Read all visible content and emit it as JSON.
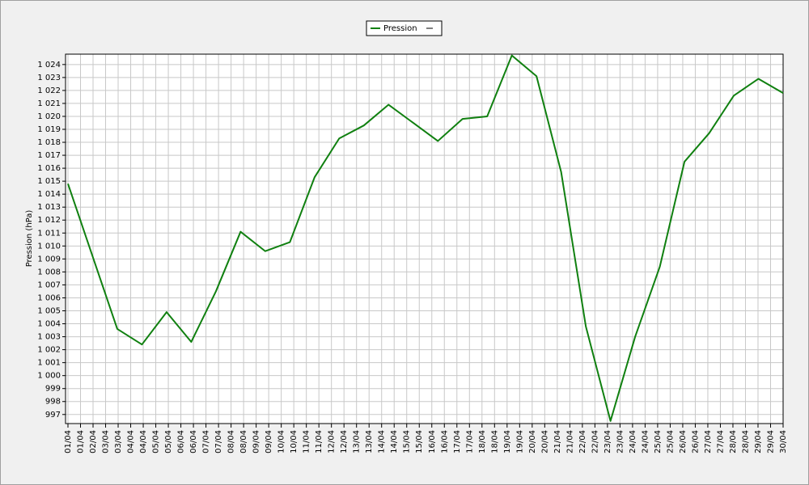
{
  "chart_data": {
    "type": "line",
    "y_label": "Pression (hPa)",
    "x": [
      "01/04",
      "02/04",
      "03/04",
      "04/04",
      "05/04",
      "06/04",
      "07/04",
      "08/04",
      "09/04",
      "10/04",
      "11/04",
      "12/04",
      "13/04",
      "14/04",
      "15/04",
      "16/04",
      "17/04",
      "18/04",
      "19/04",
      "20/04",
      "21/04",
      "22/04",
      "23/04",
      "24/04",
      "25/04",
      "26/04",
      "27/04",
      "28/04",
      "29/04",
      "30/04"
    ],
    "xticks": [
      "01/04",
      "01/04",
      "02/04",
      "03/04",
      "03/04",
      "04/04",
      "04/04",
      "05/04",
      "05/04",
      "06/04",
      "06/04",
      "07/04",
      "07/04",
      "08/04",
      "08/04",
      "09/04",
      "09/04",
      "10/04",
      "10/04",
      "11/04",
      "11/04",
      "12/04",
      "12/04",
      "13/04",
      "13/04",
      "14/04",
      "14/04",
      "15/04",
      "15/04",
      "16/04",
      "16/04",
      "17/04",
      "17/04",
      "18/04",
      "18/04",
      "19/04",
      "19/04",
      "20/04",
      "20/04",
      "21/04",
      "21/04",
      "22/04",
      "22/04",
      "23/04",
      "23/04",
      "24/04",
      "24/04",
      "25/04",
      "25/04",
      "26/04",
      "26/04",
      "27/04",
      "27/04",
      "28/04",
      "28/04",
      "29/04",
      "29/04",
      "30/04"
    ],
    "series": [
      {
        "name": "Pression",
        "color": "#108010",
        "values": [
          1014.8,
          1009.2,
          1003.6,
          1002.4,
          1004.9,
          1002.6,
          1006.5,
          1011.1,
          1009.6,
          1010.3,
          1015.3,
          1018.3,
          1019.3,
          1020.9,
          1019.5,
          1018.1,
          1019.8,
          1020.0,
          1024.7,
          1023.1,
          1015.7,
          1003.8,
          996.5,
          1003.0,
          1008.4,
          1016.5,
          1018.7,
          1021.6,
          1022.9,
          1021.8
        ]
      }
    ],
    "ylim": [
      996.3,
      1024.8
    ],
    "yticks": [
      997,
      998,
      999,
      {
        "value": 1000,
        "label": "1 000"
      },
      {
        "value": 1001,
        "label": "1 001"
      },
      {
        "value": 1002,
        "label": "1 002"
      },
      {
        "value": 1003,
        "label": "1 003"
      },
      {
        "value": 1004,
        "label": "1 004"
      },
      {
        "value": 1005,
        "label": "1 005"
      },
      {
        "value": 1006,
        "label": "1 006"
      },
      {
        "value": 1007,
        "label": "1 007"
      },
      {
        "value": 1008,
        "label": "1 008"
      },
      {
        "value": 1009,
        "label": "1 009"
      },
      {
        "value": 1010,
        "label": "1 010"
      },
      {
        "value": 1011,
        "label": "1 011"
      },
      {
        "value": 1012,
        "label": "1 012"
      },
      {
        "value": 1013,
        "label": "1 013"
      },
      {
        "value": 1014,
        "label": "1 014"
      },
      {
        "value": 1015,
        "label": "1 015"
      },
      {
        "value": 1016,
        "label": "1 016"
      },
      {
        "value": 1017,
        "label": "1 017"
      },
      {
        "value": 1018,
        "label": "1 018"
      },
      {
        "value": 1019,
        "label": "1 019"
      },
      {
        "value": 1020,
        "label": "1 020"
      },
      {
        "value": 1021,
        "label": "1 021"
      },
      {
        "value": 1022,
        "label": "1 022"
      },
      {
        "value": 1023,
        "label": "1 023"
      },
      {
        "value": 1024,
        "label": "1 024"
      }
    ],
    "grid": true
  }
}
